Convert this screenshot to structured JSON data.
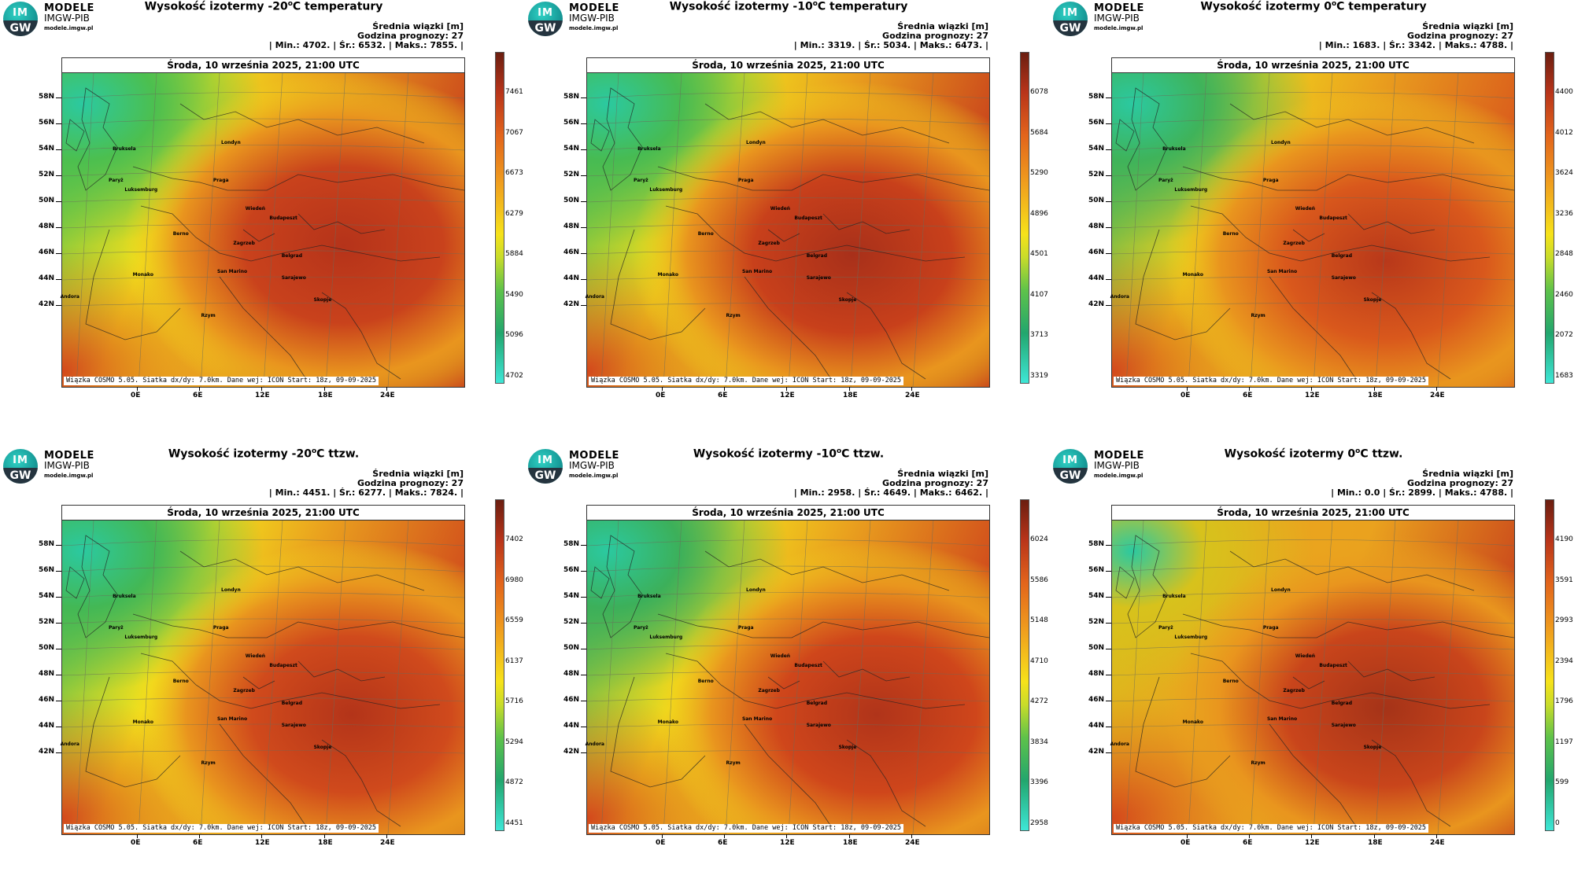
{
  "brand": {
    "line1": "MODELE",
    "line2": "IMGW-PIB",
    "line3": "modele.imgw.pl",
    "logo_top": "IM",
    "logo_bottom": "GW"
  },
  "common": {
    "date": "Środa, 10 września 2025, 21:00 UTC",
    "footer": "Wiązka COSMO 5.05. Siatka dx/dy: 7.0km. Dane wej: ICON Start: 18z, 09-09-2025",
    "stats_line1": "Średnia wiązki [m]",
    "stats_line2": "Godzina prognozy: 27",
    "lat_labels": [
      "58N",
      "56N",
      "54N",
      "52N",
      "50N",
      "48N",
      "46N",
      "44N",
      "42N"
    ],
    "lon_labels": [
      "0E",
      "6E",
      "12E",
      "18E",
      "24E"
    ],
    "cities": [
      "Londyn",
      "Bruksela",
      "Paryż",
      "Luksemburg",
      "Praga",
      "Wiedeń",
      "Budapeszt",
      "Berno",
      "Zagrzeb",
      "Belgrad",
      "San Marino",
      "Monako",
      "Sarajewo",
      "Andora",
      "Rzym",
      "Skopje"
    ]
  },
  "panels": [
    {
      "title_pre": "Wysokość izotermy -20",
      "title_sup": "o",
      "title_post": "C temperatury",
      "stats_line3": "| Min.:    4702. | Śr.:    6532. | Maks.:    7855. |",
      "colorbar": [
        "7461",
        "7067",
        "6673",
        "6279",
        "5884",
        "5490",
        "5096",
        "4702"
      ]
    },
    {
      "title_pre": "Wysokość izotermy -10",
      "title_sup": "o",
      "title_post": "C temperatury",
      "stats_line3": "| Min.:    3319. | Śr.:    5034. | Maks.:    6473. |",
      "colorbar": [
        "6078",
        "5684",
        "5290",
        "4896",
        "4501",
        "4107",
        "3713",
        "3319"
      ]
    },
    {
      "title_pre": "Wysokość izotermy 0",
      "title_sup": "o",
      "title_post": "C temperatury",
      "stats_line3": "| Min.:    1683. | Śr.:    3342. | Maks.:    4788. |",
      "colorbar": [
        "4400",
        "4012",
        "3624",
        "3236",
        "2848",
        "2460",
        "2072",
        "1683"
      ]
    },
    {
      "title_pre": "Wysokość izotermy -20",
      "title_sup": "o",
      "title_post": "C ttzw.",
      "stats_line3": "| Min.:    4451. | Śr.:    6277. | Maks.:    7824. |",
      "colorbar": [
        "7402",
        "6980",
        "6559",
        "6137",
        "5716",
        "5294",
        "4872",
        "4451"
      ]
    },
    {
      "title_pre": "Wysokość izotermy -10",
      "title_sup": "o",
      "title_post": "C ttzw.",
      "stats_line3": "| Min.:    2958. | Śr.:    4649. | Maks.:    6462. |",
      "colorbar": [
        "6024",
        "5586",
        "5148",
        "4710",
        "4272",
        "3834",
        "3396",
        "2958"
      ]
    },
    {
      "title_pre": "Wysokość izotermy 0",
      "title_sup": "o",
      "title_post": "C ttzw.",
      "stats_line3": "| Min.:      0.0 | Śr.:    2899. | Maks.:    4788. |",
      "colorbar": [
        "4190",
        "3591",
        "2993",
        "2394",
        "1796",
        "1197",
        "599",
        "0"
      ]
    }
  ],
  "colors": {
    "green": "#3bb85c",
    "yellow": "#f2e21a",
    "orange": "#e8721e",
    "red": "#c0361a",
    "dark": "#8a2a15",
    "cyan": "#3ee6d6"
  }
}
